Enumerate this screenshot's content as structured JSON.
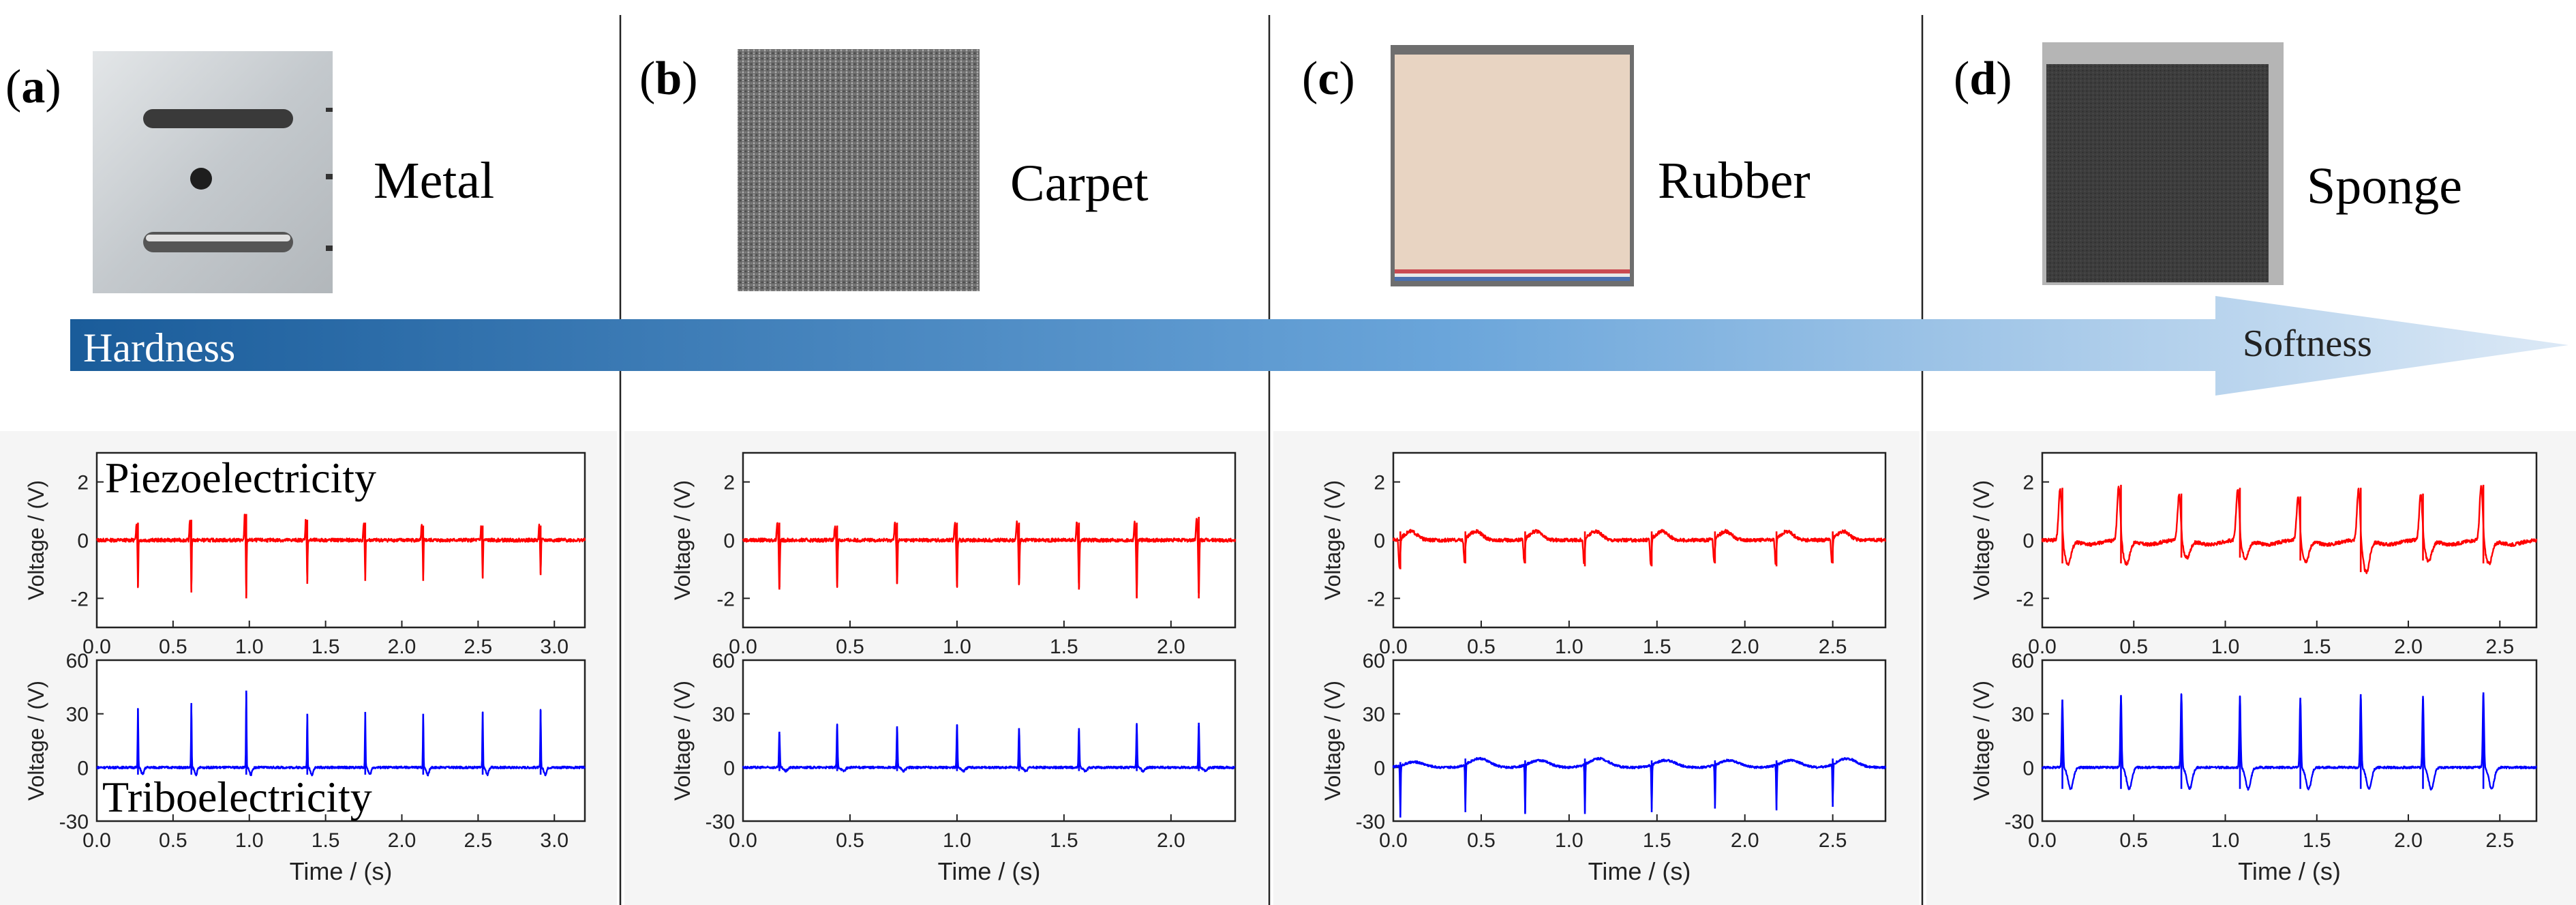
{
  "panels": [
    {
      "id": "a",
      "letter": "a",
      "material": "Metal"
    },
    {
      "id": "b",
      "letter": "b",
      "material": "Carpet"
    },
    {
      "id": "c",
      "letter": "c",
      "material": "Rubber"
    },
    {
      "id": "d",
      "letter": "d",
      "material": "Sponge"
    }
  ],
  "arrow": {
    "left_label": "Hardness",
    "right_label": "Softness"
  },
  "signal_labels": {
    "piezo": "Piezoelectricity",
    "tribo": "Triboelectricity"
  },
  "colors": {
    "piezo": "#ff0000",
    "tribo": "#0000ff",
    "arrow_start": "#1a5c9a",
    "arrow_end": "#dce9f6"
  },
  "chart_data": [
    {
      "type": "line",
      "panel": "a",
      "signal": "piezo",
      "series": [
        {
          "name": "Piezoelectricity",
          "peaks": [
            0.27,
            0.62,
            0.98,
            1.38,
            1.76,
            2.14,
            2.53,
            2.91
          ],
          "pos_amp": [
            0.6,
            0.7,
            0.9,
            0.7,
            0.6,
            0.5,
            0.5,
            0.5
          ],
          "neg_amp": [
            -1.6,
            -1.8,
            -2.0,
            -1.5,
            -1.4,
            -1.4,
            -1.3,
            -1.2
          ]
        }
      ],
      "title": "",
      "xlabel": "",
      "ylabel": "Voltage / (V)",
      "xlim": [
        0,
        3.2
      ],
      "ylim": [
        -3,
        3
      ],
      "xticks": [
        0.0,
        0.5,
        1.0,
        1.5,
        2.0,
        2.5,
        3.0
      ],
      "yticks": [
        -2,
        0,
        2
      ]
    },
    {
      "type": "line",
      "panel": "a",
      "signal": "tribo",
      "series": [
        {
          "name": "Triboelectricity",
          "peaks": [
            0.27,
            0.62,
            0.98,
            1.38,
            1.76,
            2.14,
            2.53,
            2.91
          ],
          "pos_amp": [
            33,
            36,
            43,
            30,
            31,
            30,
            31,
            32
          ],
          "neg_amp": [
            -4,
            -4,
            -4,
            -4,
            -4,
            -4,
            -4,
            -4
          ]
        }
      ],
      "title": "",
      "xlabel": "Time / (s)",
      "ylabel": "Voltage / (V)",
      "xlim": [
        0,
        3.2
      ],
      "ylim": [
        -30,
        60
      ],
      "xticks": [
        0.0,
        0.5,
        1.0,
        1.5,
        2.0,
        2.5,
        3.0
      ],
      "yticks": [
        -30,
        0,
        30,
        60
      ]
    },
    {
      "type": "line",
      "panel": "b",
      "signal": "piezo",
      "series": [
        {
          "name": "Piezoelectricity",
          "peaks": [
            0.17,
            0.44,
            0.72,
            1.0,
            1.29,
            1.57,
            1.84,
            2.13
          ],
          "pos_amp": [
            0.6,
            0.5,
            0.6,
            0.6,
            0.6,
            0.6,
            0.6,
            0.8
          ],
          "neg_amp": [
            -1.7,
            -1.6,
            -1.5,
            -1.6,
            -1.5,
            -1.7,
            -2.0,
            -2.0
          ]
        }
      ],
      "title": "",
      "xlabel": "",
      "ylabel": "Voltage / (V)",
      "xlim": [
        0,
        2.3
      ],
      "ylim": [
        -3,
        3
      ],
      "xticks": [
        0.0,
        0.5,
        1.0,
        1.5,
        2.0
      ],
      "yticks": [
        -2,
        0,
        2
      ]
    },
    {
      "type": "line",
      "panel": "b",
      "signal": "tribo",
      "series": [
        {
          "name": "Triboelectricity",
          "peaks": [
            0.17,
            0.44,
            0.72,
            1.0,
            1.29,
            1.57,
            1.84,
            2.13
          ],
          "pos_amp": [
            20,
            24,
            23,
            24,
            22,
            22,
            24,
            25
          ],
          "neg_amp": [
            -2,
            -2,
            -2,
            -2,
            -2,
            -2,
            -2,
            -2
          ]
        }
      ],
      "title": "",
      "xlabel": "Time / (s)",
      "ylabel": "Voltage / (V)",
      "xlim": [
        0,
        2.3
      ],
      "ylim": [
        -30,
        60
      ],
      "xticks": [
        0.0,
        0.5,
        1.0,
        1.5,
        2.0
      ],
      "yticks": [
        -30,
        0,
        30,
        60
      ]
    },
    {
      "type": "line",
      "panel": "c",
      "signal": "piezo",
      "series": [
        {
          "name": "Piezoelectricity",
          "peaks": [
            0.04,
            0.41,
            0.75,
            1.09,
            1.47,
            1.83,
            2.18,
            2.5
          ],
          "pos_amp": [
            0.3,
            0.3,
            0.3,
            0.3,
            0.3,
            0.3,
            0.3,
            0.3
          ],
          "neg_amp": [
            -1.0,
            -0.8,
            -0.8,
            -0.9,
            -0.9,
            -0.8,
            -0.9,
            -0.8
          ]
        }
      ],
      "title": "",
      "xlabel": "",
      "ylabel": "Voltage / (V)",
      "xlim": [
        0,
        2.8
      ],
      "ylim": [
        -3,
        3
      ],
      "xticks": [
        0.0,
        0.5,
        1.0,
        1.5,
        2.0,
        2.5
      ],
      "yticks": [
        -2,
        0,
        2
      ]
    },
    {
      "type": "line",
      "panel": "c",
      "signal": "tribo",
      "series": [
        {
          "name": "Triboelectricity",
          "peaks": [
            0.04,
            0.41,
            0.75,
            1.09,
            1.47,
            1.83,
            2.18,
            2.5
          ],
          "pos_amp": [
            3,
            5,
            4,
            5,
            4,
            4,
            4,
            5
          ],
          "neg_amp": [
            -28,
            -25,
            -26,
            -26,
            -25,
            -23,
            -24,
            -22
          ]
        }
      ],
      "title": "",
      "xlabel": "Time / (s)",
      "ylabel": "Voltage / (V)",
      "xlim": [
        0,
        2.8
      ],
      "ylim": [
        -30,
        60
      ],
      "xticks": [
        0.0,
        0.5,
        1.0,
        1.5,
        2.0,
        2.5
      ],
      "yticks": [
        -30,
        0,
        30,
        60
      ]
    },
    {
      "type": "line",
      "panel": "d",
      "signal": "piezo",
      "series": [
        {
          "name": "Piezoelectricity",
          "peaks": [
            0.11,
            0.43,
            0.76,
            1.08,
            1.41,
            1.74,
            2.08,
            2.41
          ],
          "pos_amp": [
            1.8,
            1.9,
            1.6,
            1.8,
            1.5,
            1.8,
            1.6,
            1.9
          ],
          "neg_amp": [
            -0.8,
            -0.8,
            -0.6,
            -0.6,
            -0.7,
            -1.1,
            -0.7,
            -0.8
          ]
        }
      ],
      "title": "",
      "xlabel": "",
      "ylabel": "Voltage / (V)",
      "xlim": [
        0,
        2.7
      ],
      "ylim": [
        -3,
        3
      ],
      "xticks": [
        0.0,
        0.5,
        1.0,
        1.5,
        2.0,
        2.5
      ],
      "yticks": [
        -2,
        0,
        2
      ]
    },
    {
      "type": "line",
      "panel": "d",
      "signal": "tribo",
      "series": [
        {
          "name": "Triboelectricity",
          "peaks": [
            0.11,
            0.43,
            0.76,
            1.08,
            1.41,
            1.74,
            2.08,
            2.41
          ],
          "pos_amp": [
            38,
            40,
            41,
            40,
            39,
            41,
            40,
            42
          ],
          "neg_amp": [
            -12,
            -12,
            -12,
            -12,
            -12,
            -12,
            -12,
            -12
          ]
        }
      ],
      "title": "",
      "xlabel": "Time / (s)",
      "ylabel": "Voltage / (V)",
      "xlim": [
        0,
        2.7
      ],
      "ylim": [
        -30,
        60
      ],
      "xticks": [
        0.0,
        0.5,
        1.0,
        1.5,
        2.0,
        2.5
      ],
      "yticks": [
        -30,
        0,
        30,
        60
      ]
    }
  ]
}
